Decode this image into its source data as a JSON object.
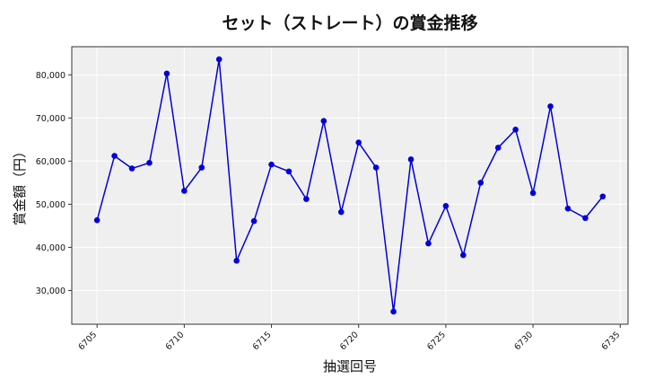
{
  "chart_data": {
    "type": "line",
    "title": "セット（ストレート）の賞金推移",
    "xlabel": "抽選回号",
    "ylabel": "賞金額（円）",
    "x": [
      6705,
      6706,
      6707,
      6708,
      6709,
      6710,
      6711,
      6712,
      6713,
      6714,
      6715,
      6716,
      6717,
      6718,
      6719,
      6720,
      6721,
      6722,
      6723,
      6724,
      6725,
      6726,
      6727,
      6728,
      6729,
      6730,
      6731,
      6732,
      6733,
      6734
    ],
    "series": [
      {
        "values": [
          46300,
          61200,
          58300,
          59600,
          80300,
          53100,
          58500,
          83600,
          36900,
          46100,
          59200,
          57600,
          51200,
          69300,
          48200,
          64300,
          58500,
          25100,
          60400,
          40900,
          49600,
          38200,
          55000,
          63100,
          67300,
          52600,
          72700,
          49000,
          46800,
          51800
        ]
      }
    ],
    "xticks": [
      "6705",
      "6710",
      "6715",
      "6720",
      "6725",
      "6730",
      "6735"
    ],
    "yticks": [
      "30,000",
      "40,000",
      "50,000",
      "60,000",
      "70,000",
      "80,000"
    ],
    "xlim": [
      6703.55,
      6735.45
    ],
    "ylim": [
      22180,
      86520
    ],
    "line_color": "#0000dd",
    "background": "#efefef",
    "grid": true
  }
}
